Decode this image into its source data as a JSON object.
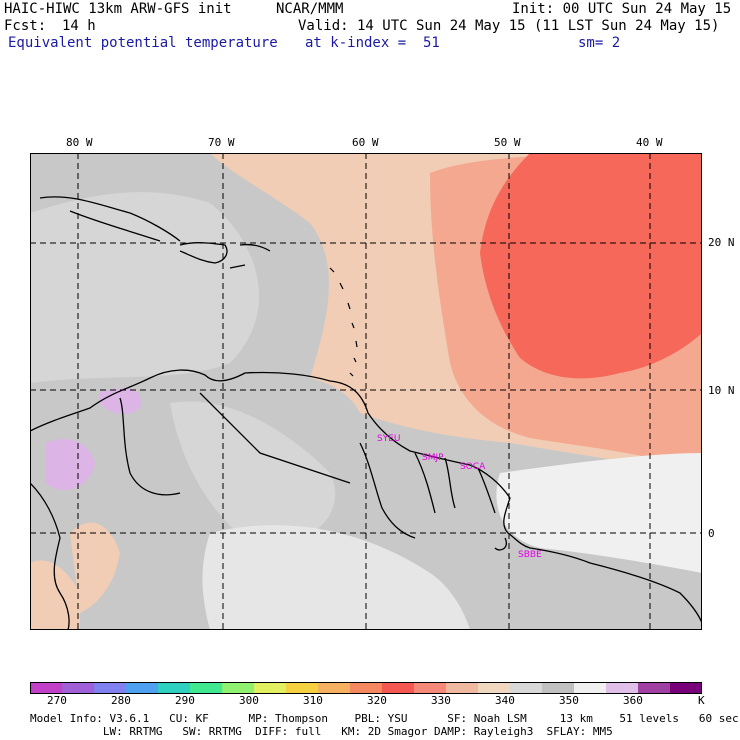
{
  "header": {
    "model_title": "HAIC-HIWC 13km ARW-GFS init",
    "org": "NCAR/MMM",
    "init": "Init: 00 UTC Sun 24 May 15",
    "fcst_label": "Fcst:",
    "fcst_value": "14 h",
    "valid": "Valid: 14 UTC Sun 24 May 15 (11 LST Sun 24 May 15)",
    "field": "Equivalent potential temperature",
    "level": "at k-index =  51",
    "smooth": "sm= 2"
  },
  "map": {
    "lon_labels": [
      "80 W",
      "70 W",
      "60 W",
      "50 W",
      "40 W"
    ],
    "lat_labels": [
      "20 N",
      "10 N",
      "0"
    ],
    "stations": [
      "SYEU",
      "SMJP",
      "SOCA",
      "SBBE"
    ],
    "colors": {
      "gray_dark": "#c8c8c8",
      "gray_light": "#d8d8d8",
      "white": "#f0f0f0",
      "peach": "#f0cdb4",
      "salmon": "#f5a890",
      "red": "#f5685a",
      "lavender": "#dcb4e6",
      "station": "#e600e6"
    }
  },
  "colorbar": {
    "labels": [
      "270",
      "280",
      "290",
      "300",
      "310",
      "320",
      "330",
      "340",
      "350",
      "360",
      "K"
    ],
    "colors": [
      "#c040c8",
      "#a060d8",
      "#8080f0",
      "#50a0f0",
      "#30d0c0",
      "#40e890",
      "#90f070",
      "#e0f060",
      "#f5d040",
      "#f5b060",
      "#f58860",
      "#f55850",
      "#f58878",
      "#f0b8a0",
      "#f0d8c0",
      "#d8d8d8",
      "#c0c0c0",
      "#f0f0f0",
      "#e0c0e8",
      "#a040a0",
      "#780078"
    ]
  },
  "footer": {
    "line1": "Model Info: V3.6.1   CU: KF      MP: Thompson    PBL: YSU      SF: Noah LSM     13 km    51 levels   60 sec",
    "line2": "           LW: RRTMG   SW: RRTMG  DIFF: full   KM: 2D Smagor DAMP: Rayleigh3  SFLAY: MM5"
  }
}
